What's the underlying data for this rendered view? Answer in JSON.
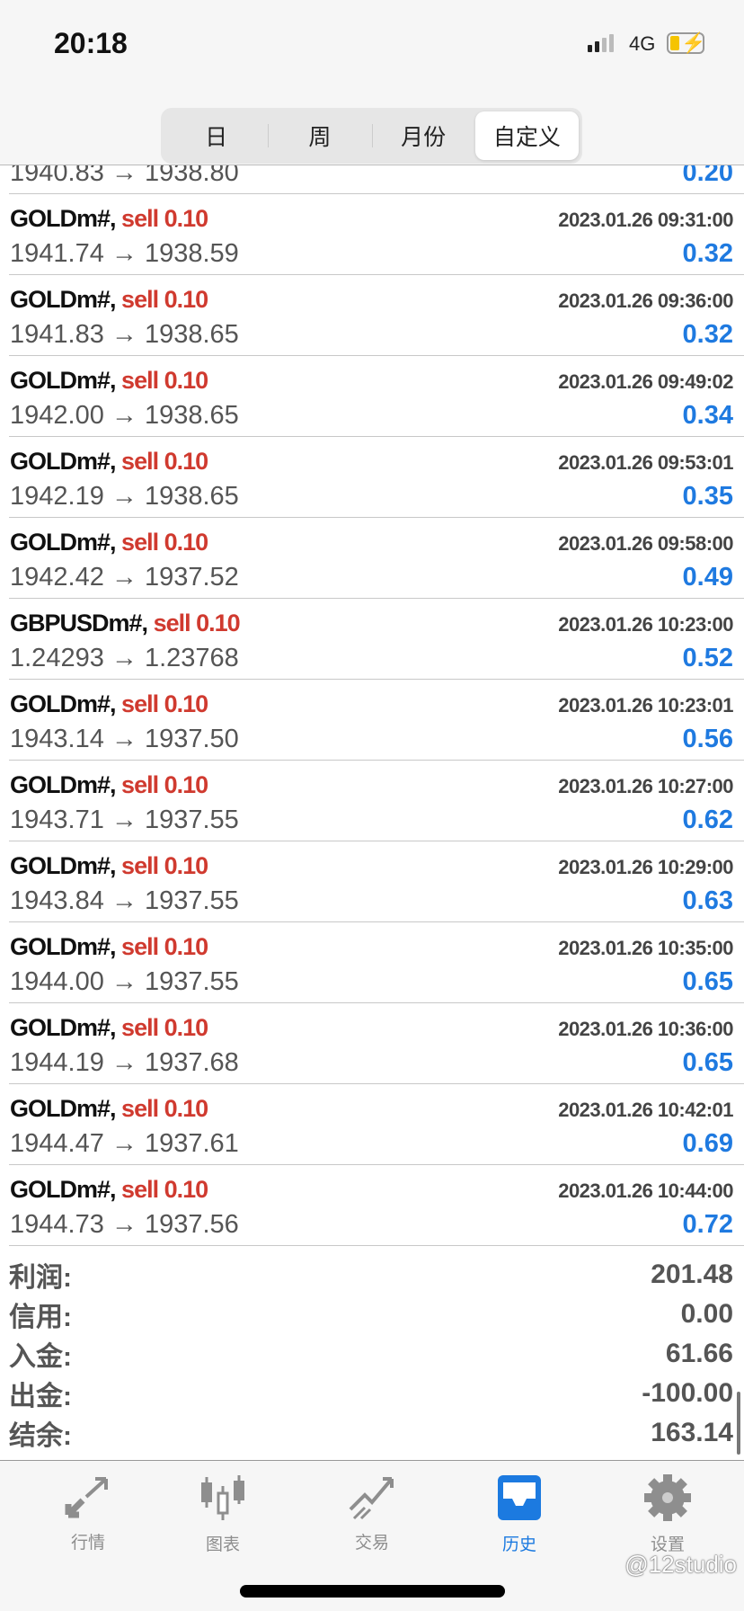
{
  "status_bar": {
    "time": "20:18",
    "network": "4G"
  },
  "segments": [
    {
      "label": "日"
    },
    {
      "label": "周"
    },
    {
      "label": "月份"
    },
    {
      "label": "自定义",
      "active": true
    }
  ],
  "partial_row": {
    "prices": "1940.83 → 1938.80",
    "profit": "0.20"
  },
  "trades": [
    {
      "symbol": "GOLDm#,",
      "side": "sell 0.10",
      "time": "2023.01.26 09:31:00",
      "prices": "1941.74 → 1938.59",
      "profit": "0.32"
    },
    {
      "symbol": "GOLDm#,",
      "side": "sell 0.10",
      "time": "2023.01.26 09:36:00",
      "prices": "1941.83 → 1938.65",
      "profit": "0.32"
    },
    {
      "symbol": "GOLDm#,",
      "side": "sell 0.10",
      "time": "2023.01.26 09:49:02",
      "prices": "1942.00 → 1938.65",
      "profit": "0.34"
    },
    {
      "symbol": "GOLDm#,",
      "side": "sell 0.10",
      "time": "2023.01.26 09:53:01",
      "prices": "1942.19 → 1938.65",
      "profit": "0.35"
    },
    {
      "symbol": "GOLDm#,",
      "side": "sell 0.10",
      "time": "2023.01.26 09:58:00",
      "prices": "1942.42 → 1937.52",
      "profit": "0.49"
    },
    {
      "symbol": "GBPUSDm#,",
      "side": "sell 0.10",
      "time": "2023.01.26 10:23:00",
      "prices": "1.24293 → 1.23768",
      "profit": "0.52"
    },
    {
      "symbol": "GOLDm#,",
      "side": "sell 0.10",
      "time": "2023.01.26 10:23:01",
      "prices": "1943.14 → 1937.50",
      "profit": "0.56"
    },
    {
      "symbol": "GOLDm#,",
      "side": "sell 0.10",
      "time": "2023.01.26 10:27:00",
      "prices": "1943.71 → 1937.55",
      "profit": "0.62"
    },
    {
      "symbol": "GOLDm#,",
      "side": "sell 0.10",
      "time": "2023.01.26 10:29:00",
      "prices": "1943.84 → 1937.55",
      "profit": "0.63"
    },
    {
      "symbol": "GOLDm#,",
      "side": "sell 0.10",
      "time": "2023.01.26 10:35:00",
      "prices": "1944.00 → 1937.55",
      "profit": "0.65"
    },
    {
      "symbol": "GOLDm#,",
      "side": "sell 0.10",
      "time": "2023.01.26 10:36:00",
      "prices": "1944.19 → 1937.68",
      "profit": "0.65"
    },
    {
      "symbol": "GOLDm#,",
      "side": "sell 0.10",
      "time": "2023.01.26 10:42:01",
      "prices": "1944.47 → 1937.61",
      "profit": "0.69"
    },
    {
      "symbol": "GOLDm#,",
      "side": "sell 0.10",
      "time": "2023.01.26 10:44:00",
      "prices": "1944.73 → 1937.56",
      "profit": "0.72"
    }
  ],
  "summary": [
    {
      "label": "利润:",
      "value": "201.48"
    },
    {
      "label": "信用:",
      "value": "0.00"
    },
    {
      "label": "入金:",
      "value": "61.66"
    },
    {
      "label": "出金:",
      "value": "-100.00"
    },
    {
      "label": "结余:",
      "value": "163.14"
    }
  ],
  "tabs": [
    {
      "label": "行情",
      "icon": "quotes-arrows-icon"
    },
    {
      "label": "图表",
      "icon": "candlestick-icon"
    },
    {
      "label": "交易",
      "icon": "trade-trend-icon"
    },
    {
      "label": "历史",
      "icon": "inbox-history-icon",
      "active": true
    },
    {
      "label": "设置",
      "icon": "gear-icon"
    }
  ],
  "watermark": "@12studio",
  "colors": {
    "sell": "#d03a2f",
    "profit": "#1f7ae0",
    "active_tab": "#1c7ae0",
    "inactive_tab": "#8e8e8e"
  }
}
